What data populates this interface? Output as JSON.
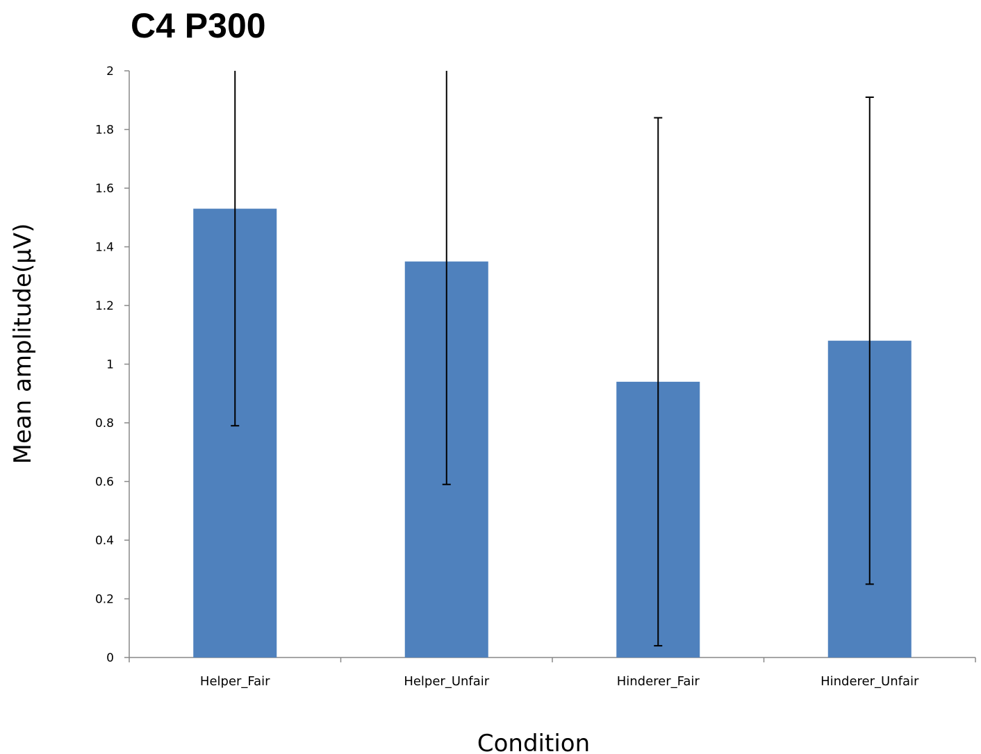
{
  "chart_data": {
    "type": "bar",
    "title": "C4 P300",
    "xlabel": "Condition",
    "ylabel": "Mean amplitude(μV)",
    "categories": [
      "Helper_Fair",
      "Helper_Unfair",
      "Hinderer_Fair",
      "Hinderer_Unfair"
    ],
    "values": [
      1.53,
      1.35,
      0.94,
      1.08
    ],
    "error_bars": [
      {
        "low": 0.79,
        "high": 2.0
      },
      {
        "low": 0.59,
        "high": 2.0
      },
      {
        "low": 0.04,
        "high": 1.84
      },
      {
        "low": 0.25,
        "high": 1.91
      }
    ],
    "ylim": [
      0,
      2
    ],
    "yticks": [
      "0",
      "0.2",
      "0.4",
      "0.6",
      "0.8",
      "1",
      "1.2",
      "1.4",
      "1.6",
      "1.8",
      "2"
    ],
    "grid": false,
    "legend": "none",
    "colors": {
      "bar": "#4f81bd",
      "axis": "#888888",
      "error_bar": "#000000"
    }
  }
}
